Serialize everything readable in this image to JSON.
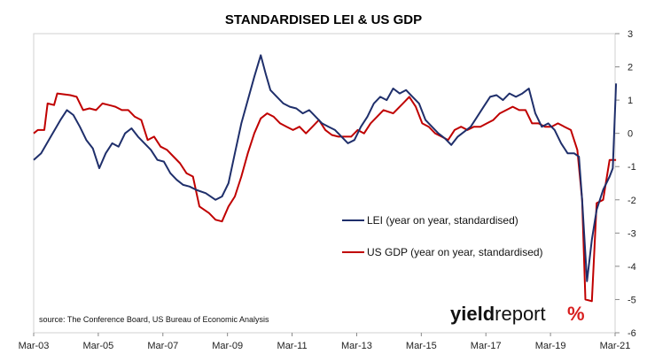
{
  "chart_data": {
    "type": "line",
    "title": "STANDARDISED LEI & US GDP",
    "source": "source: The Conference Board, US Bureau of Economic Analysis",
    "logo": {
      "part1": "yield",
      "part2": "report",
      "symbol": "%"
    },
    "x_tick_labels": [
      "Mar-03",
      "Mar-05",
      "Mar-07",
      "Mar-09",
      "Mar-11",
      "Mar-13",
      "Mar-15",
      "Mar-17",
      "Mar-19",
      "Mar-21"
    ],
    "x_range": [
      "Mar-03",
      "Mar-21"
    ],
    "ylim": [
      -6,
      3
    ],
    "y_ticks": [
      3,
      2,
      1,
      0,
      -1,
      -2,
      -3,
      -4,
      -5,
      -6
    ],
    "y_axis_side": "right",
    "grid": false,
    "legend_position": "center-right",
    "series": [
      {
        "name": "LEI (year on year, standardised)",
        "color": "#1f2f6b",
        "points": [
          [
            2003.17,
            -0.8
          ],
          [
            2003.4,
            -0.6
          ],
          [
            2003.7,
            -0.1
          ],
          [
            2004.0,
            0.4
          ],
          [
            2004.2,
            0.7
          ],
          [
            2004.4,
            0.55
          ],
          [
            2004.6,
            0.2
          ],
          [
            2004.8,
            -0.2
          ],
          [
            2005.0,
            -0.45
          ],
          [
            2005.2,
            -1.05
          ],
          [
            2005.4,
            -0.6
          ],
          [
            2005.6,
            -0.3
          ],
          [
            2005.8,
            -0.4
          ],
          [
            2006.0,
            0.0
          ],
          [
            2006.2,
            0.15
          ],
          [
            2006.4,
            -0.1
          ],
          [
            2006.6,
            -0.3
          ],
          [
            2006.8,
            -0.5
          ],
          [
            2007.0,
            -0.8
          ],
          [
            2007.2,
            -0.85
          ],
          [
            2007.4,
            -1.2
          ],
          [
            2007.6,
            -1.4
          ],
          [
            2007.8,
            -1.55
          ],
          [
            2008.0,
            -1.6
          ],
          [
            2008.2,
            -1.7
          ],
          [
            2008.5,
            -1.8
          ],
          [
            2008.8,
            -2.0
          ],
          [
            2009.0,
            -1.9
          ],
          [
            2009.2,
            -1.5
          ],
          [
            2009.4,
            -0.6
          ],
          [
            2009.6,
            0.3
          ],
          [
            2009.8,
            1.0
          ],
          [
            2010.0,
            1.7
          ],
          [
            2010.2,
            2.35
          ],
          [
            2010.35,
            1.8
          ],
          [
            2010.5,
            1.3
          ],
          [
            2010.7,
            1.1
          ],
          [
            2010.9,
            0.9
          ],
          [
            2011.1,
            0.8
          ],
          [
            2011.3,
            0.75
          ],
          [
            2011.5,
            0.6
          ],
          [
            2011.7,
            0.7
          ],
          [
            2011.9,
            0.5
          ],
          [
            2012.1,
            0.3
          ],
          [
            2012.3,
            0.2
          ],
          [
            2012.5,
            0.1
          ],
          [
            2012.7,
            -0.1
          ],
          [
            2012.9,
            -0.3
          ],
          [
            2013.1,
            -0.2
          ],
          [
            2013.3,
            0.2
          ],
          [
            2013.5,
            0.5
          ],
          [
            2013.7,
            0.9
          ],
          [
            2013.9,
            1.1
          ],
          [
            2014.1,
            1.0
          ],
          [
            2014.3,
            1.35
          ],
          [
            2014.5,
            1.2
          ],
          [
            2014.7,
            1.3
          ],
          [
            2014.9,
            1.1
          ],
          [
            2015.1,
            0.9
          ],
          [
            2015.3,
            0.4
          ],
          [
            2015.5,
            0.2
          ],
          [
            2015.7,
            0.0
          ],
          [
            2015.9,
            -0.15
          ],
          [
            2016.1,
            -0.35
          ],
          [
            2016.3,
            -0.1
          ],
          [
            2016.5,
            0.05
          ],
          [
            2016.7,
            0.2
          ],
          [
            2016.9,
            0.5
          ],
          [
            2017.1,
            0.8
          ],
          [
            2017.3,
            1.1
          ],
          [
            2017.5,
            1.15
          ],
          [
            2017.7,
            1.0
          ],
          [
            2017.9,
            1.2
          ],
          [
            2018.1,
            1.1
          ],
          [
            2018.3,
            1.2
          ],
          [
            2018.5,
            1.35
          ],
          [
            2018.7,
            0.6
          ],
          [
            2018.9,
            0.2
          ],
          [
            2019.1,
            0.3
          ],
          [
            2019.3,
            0.1
          ],
          [
            2019.5,
            -0.3
          ],
          [
            2019.7,
            -0.6
          ],
          [
            2019.9,
            -0.6
          ],
          [
            2020.05,
            -0.7
          ],
          [
            2020.15,
            -2.0
          ],
          [
            2020.3,
            -4.45
          ],
          [
            2020.45,
            -3.2
          ],
          [
            2020.6,
            -2.3
          ],
          [
            2020.8,
            -1.7
          ],
          [
            2021.0,
            -1.3
          ],
          [
            2021.1,
            -1.05
          ],
          [
            2021.2,
            1.5
          ]
        ]
      },
      {
        "name": "US GDP (year on year, standardised)",
        "color": "#c00000",
        "points": [
          [
            2003.17,
            0.0
          ],
          [
            2003.3,
            0.1
          ],
          [
            2003.5,
            0.1
          ],
          [
            2003.6,
            0.9
          ],
          [
            2003.8,
            0.85
          ],
          [
            2003.9,
            1.2
          ],
          [
            2004.3,
            1.15
          ],
          [
            2004.5,
            1.1
          ],
          [
            2004.7,
            0.7
          ],
          [
            2004.9,
            0.75
          ],
          [
            2005.1,
            0.7
          ],
          [
            2005.3,
            0.9
          ],
          [
            2005.5,
            0.85
          ],
          [
            2005.7,
            0.8
          ],
          [
            2005.9,
            0.7
          ],
          [
            2006.1,
            0.7
          ],
          [
            2006.3,
            0.5
          ],
          [
            2006.5,
            0.4
          ],
          [
            2006.7,
            -0.2
          ],
          [
            2006.9,
            -0.1
          ],
          [
            2007.1,
            -0.4
          ],
          [
            2007.3,
            -0.5
          ],
          [
            2007.5,
            -0.7
          ],
          [
            2007.7,
            -0.9
          ],
          [
            2007.9,
            -1.2
          ],
          [
            2008.1,
            -1.3
          ],
          [
            2008.3,
            -2.2
          ],
          [
            2008.6,
            -2.4
          ],
          [
            2008.8,
            -2.6
          ],
          [
            2009.0,
            -2.65
          ],
          [
            2009.2,
            -2.2
          ],
          [
            2009.4,
            -1.9
          ],
          [
            2009.6,
            -1.3
          ],
          [
            2009.8,
            -0.6
          ],
          [
            2010.0,
            0.0
          ],
          [
            2010.2,
            0.45
          ],
          [
            2010.4,
            0.6
          ],
          [
            2010.6,
            0.5
          ],
          [
            2010.8,
            0.3
          ],
          [
            2011.0,
            0.2
          ],
          [
            2011.2,
            0.1
          ],
          [
            2011.4,
            0.2
          ],
          [
            2011.6,
            0.0
          ],
          [
            2011.8,
            0.2
          ],
          [
            2012.0,
            0.4
          ],
          [
            2012.2,
            0.1
          ],
          [
            2012.4,
            -0.05
          ],
          [
            2012.6,
            -0.1
          ],
          [
            2012.8,
            -0.1
          ],
          [
            2013.0,
            -0.1
          ],
          [
            2013.2,
            0.1
          ],
          [
            2013.4,
            0.0
          ],
          [
            2013.6,
            0.3
          ],
          [
            2013.8,
            0.5
          ],
          [
            2014.0,
            0.7
          ],
          [
            2014.3,
            0.6
          ],
          [
            2014.6,
            0.9
          ],
          [
            2014.8,
            1.1
          ],
          [
            2015.0,
            0.8
          ],
          [
            2015.2,
            0.3
          ],
          [
            2015.4,
            0.2
          ],
          [
            2015.6,
            0.0
          ],
          [
            2015.8,
            -0.1
          ],
          [
            2016.0,
            -0.2
          ],
          [
            2016.2,
            0.1
          ],
          [
            2016.4,
            0.2
          ],
          [
            2016.6,
            0.1
          ],
          [
            2016.8,
            0.2
          ],
          [
            2017.0,
            0.2
          ],
          [
            2017.2,
            0.3
          ],
          [
            2017.4,
            0.4
          ],
          [
            2017.6,
            0.6
          ],
          [
            2017.8,
            0.7
          ],
          [
            2018.0,
            0.8
          ],
          [
            2018.2,
            0.7
          ],
          [
            2018.4,
            0.7
          ],
          [
            2018.6,
            0.3
          ],
          [
            2018.8,
            0.3
          ],
          [
            2019.0,
            0.2
          ],
          [
            2019.2,
            0.2
          ],
          [
            2019.4,
            0.3
          ],
          [
            2019.6,
            0.2
          ],
          [
            2019.8,
            0.1
          ],
          [
            2020.0,
            -0.5
          ],
          [
            2020.15,
            -2.0
          ],
          [
            2020.25,
            -5.0
          ],
          [
            2020.45,
            -5.05
          ],
          [
            2020.6,
            -2.1
          ],
          [
            2020.8,
            -2.0
          ],
          [
            2021.0,
            -0.8
          ],
          [
            2021.2,
            -0.8
          ]
        ]
      }
    ]
  }
}
